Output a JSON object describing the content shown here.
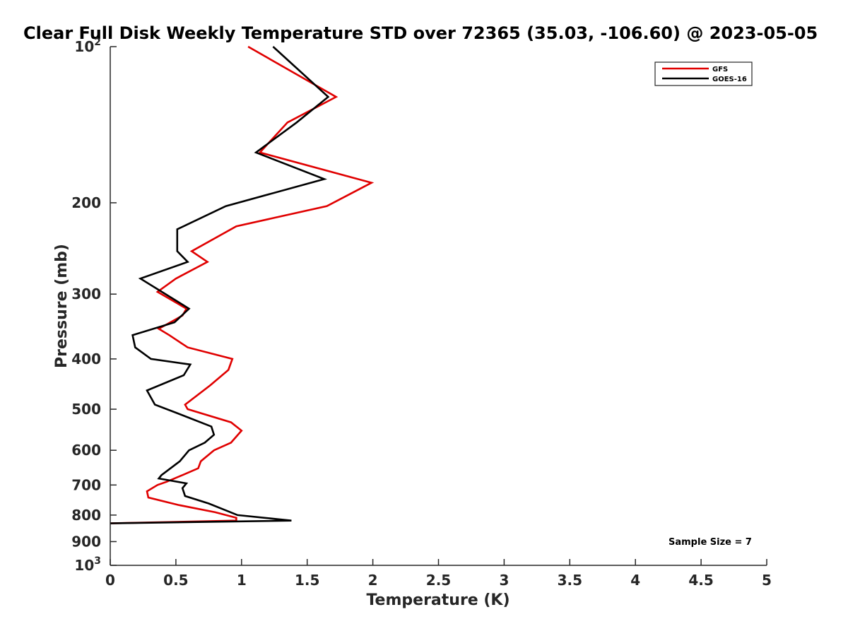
{
  "chart_data": {
    "type": "line",
    "title": "Clear Full Disk Weekly Temperature STD over 72365 (35.03, -106.60) @ 2023-05-05",
    "xlabel": "Temperature (K)",
    "ylabel": "Pressure (mb)",
    "xlim": [
      0,
      5
    ],
    "ylim": [
      100,
      1000
    ],
    "yscale": "log",
    "y_reversed": true,
    "grid": false,
    "x_ticks": [
      {
        "value": 0,
        "label": "0"
      },
      {
        "value": 0.5,
        "label": "0.5"
      },
      {
        "value": 1,
        "label": "1"
      },
      {
        "value": 1.5,
        "label": "1.5"
      },
      {
        "value": 2,
        "label": "2"
      },
      {
        "value": 2.5,
        "label": "2.5"
      },
      {
        "value": 3,
        "label": "3"
      },
      {
        "value": 3.5,
        "label": "3.5"
      },
      {
        "value": 4,
        "label": "4"
      },
      {
        "value": 4.5,
        "label": "4.5"
      },
      {
        "value": 5,
        "label": "5"
      }
    ],
    "y_ticks": [
      {
        "value": 100,
        "label": "10",
        "sup": "2"
      },
      {
        "value": 200,
        "label": "200"
      },
      {
        "value": 300,
        "label": "300"
      },
      {
        "value": 400,
        "label": "400"
      },
      {
        "value": 500,
        "label": "500"
      },
      {
        "value": 600,
        "label": "600"
      },
      {
        "value": 700,
        "label": "700"
      },
      {
        "value": 800,
        "label": "800"
      },
      {
        "value": 900,
        "label": "900"
      },
      {
        "value": 1000,
        "label": "10",
        "sup": "3"
      }
    ],
    "legend": {
      "placement": "top-right"
    },
    "annotation": "Sample Size = 7",
    "series": [
      {
        "name": "GFS",
        "color": "#e00000",
        "x": [
          1.05,
          1.72,
          1.35,
          1.14,
          1.99,
          1.65,
          0.96,
          0.62,
          0.74,
          0.5,
          0.36,
          0.58,
          0.55,
          0.37,
          0.45,
          0.59,
          0.93,
          0.9,
          0.76,
          0.57,
          0.59,
          0.92,
          1.0,
          0.92,
          0.79,
          0.69,
          0.67,
          0.55,
          0.43,
          0.36,
          0.28,
          0.29,
          0.52,
          0.8,
          0.96,
          0.96,
          0.0
        ],
        "y": [
          100,
          125,
          140,
          160,
          183,
          203,
          222,
          248,
          260,
          280,
          297,
          320,
          330,
          350,
          360,
          380,
          400,
          420,
          450,
          490,
          500,
          530,
          550,
          580,
          600,
          630,
          650,
          670,
          690,
          700,
          720,
          740,
          765,
          790,
          810,
          820,
          830
        ]
      },
      {
        "name": "GOES-16",
        "color": "#000000",
        "x": [
          1.24,
          1.66,
          1.42,
          1.11,
          1.63,
          0.88,
          0.51,
          0.51,
          0.59,
          0.23,
          0.6,
          0.49,
          0.17,
          0.19,
          0.31,
          0.61,
          0.56,
          0.28,
          0.34,
          0.52,
          0.77,
          0.79,
          0.72,
          0.6,
          0.53,
          0.39,
          0.37,
          0.58,
          0.55,
          0.57,
          0.75,
          0.97,
          1.38,
          0.0
        ],
        "y": [
          100,
          125,
          140,
          160,
          180,
          203,
          225,
          248,
          260,
          280,
          320,
          340,
          360,
          380,
          400,
          410,
          430,
          460,
          490,
          510,
          540,
          560,
          580,
          600,
          630,
          670,
          680,
          695,
          710,
          735,
          760,
          800,
          820,
          830
        ]
      }
    ]
  }
}
